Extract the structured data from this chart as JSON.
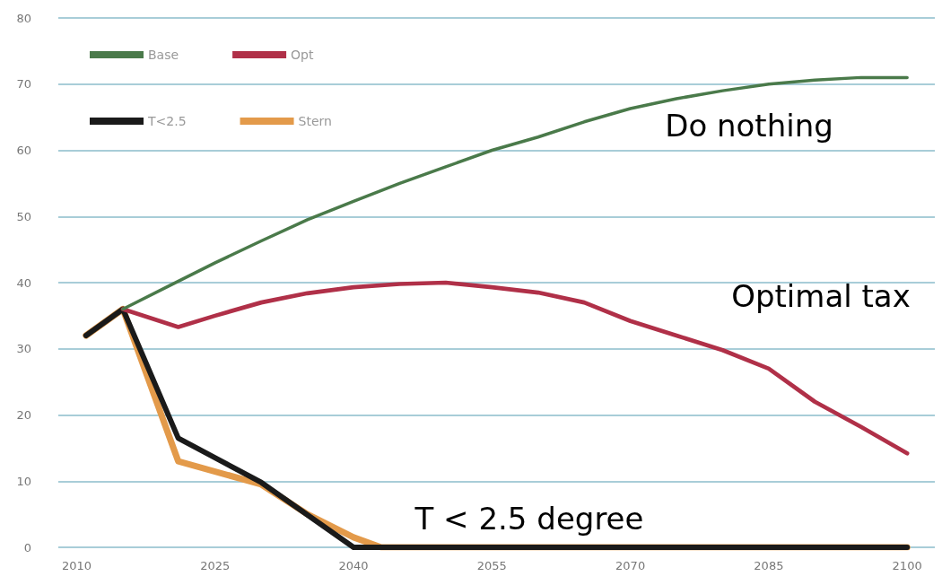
{
  "chart_data": {
    "type": "line",
    "xlim": [
      2008,
      2103
    ],
    "xticks": [
      2010,
      2025,
      2040,
      2055,
      2070,
      2085,
      2100
    ],
    "ylim": [
      0,
      80
    ],
    "yticks": [
      0,
      10,
      20,
      30,
      40,
      50,
      60,
      70,
      80
    ],
    "grid": "y",
    "legend": "top left",
    "marker": "none",
    "line_style": "solid",
    "series": [
      {
        "name": "Base",
        "color": "#4a7a4a",
        "x": [
          2015,
          2020,
          2025,
          2030,
          2035,
          2040,
          2045,
          2050,
          2055,
          2060,
          2065,
          2070,
          2075,
          2080,
          2085,
          2090,
          2095,
          2100
        ],
        "values": [
          36,
          39.5,
          43,
          46.3,
          49.5,
          52.3,
          55,
          57.5,
          60,
          62,
          64.3,
          66.3,
          67.8,
          69,
          70,
          70.6,
          71,
          71
        ]
      },
      {
        "name": "Opt",
        "color": "#b03048",
        "x": [
          2015,
          2021,
          2025,
          2030,
          2035,
          2040,
          2045,
          2050,
          2055,
          2060,
          2065,
          2070,
          2075,
          2080,
          2085,
          2090,
          2095,
          2100
        ],
        "values": [
          36,
          33.3,
          35,
          37,
          38.4,
          39.3,
          39.8,
          40,
          39.3,
          38.5,
          37,
          34.2,
          32,
          29.8,
          27,
          22,
          18.2,
          14.2
        ]
      },
      {
        "name": "T<2.5",
        "color": "#1a1a1a",
        "x": [
          2011,
          2015,
          2021,
          2030,
          2040,
          2100
        ],
        "values": [
          32,
          36,
          16.5,
          9.8,
          0,
          0
        ]
      },
      {
        "name": "Stern",
        "color": "#e39a4a",
        "x": [
          2011,
          2015,
          2021,
          2030,
          2035,
          2040,
          2043,
          2100
        ],
        "values": [
          32,
          36,
          13,
          9.5,
          5,
          1.5,
          0,
          0
        ]
      }
    ],
    "annotations": [
      "Do nothing",
      "Optimal tax",
      "T < 2.5 degree"
    ]
  }
}
